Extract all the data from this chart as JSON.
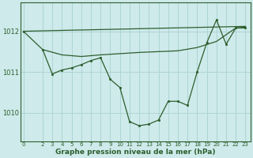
{
  "bg_color": "#ceeaea",
  "grid_color": "#afd4d4",
  "line_color": "#2d5e2d",
  "marker_color": "#2d5e2d",
  "xlabel": "Graphe pression niveau de la mer (hPa)",
  "xlabel_fontsize": 6.5,
  "xticks": [
    0,
    2,
    3,
    4,
    5,
    6,
    7,
    8,
    9,
    10,
    11,
    12,
    13,
    14,
    15,
    16,
    17,
    18,
    19,
    20,
    21,
    22,
    23
  ],
  "yticks": [
    1010,
    1011,
    1012
  ],
  "ylim": [
    1009.3,
    1012.7
  ],
  "xlim": [
    -0.3,
    23.5
  ],
  "lineA": {
    "x": [
      0,
      23
    ],
    "y": [
      1012.0,
      1012.12
    ]
  },
  "lineB": {
    "x": [
      2,
      4,
      6,
      8,
      10,
      12,
      14,
      16,
      18,
      20,
      22,
      23
    ],
    "y": [
      1011.55,
      1011.42,
      1011.38,
      1011.42,
      1011.45,
      1011.48,
      1011.5,
      1011.52,
      1011.6,
      1011.75,
      1012.08,
      1012.1
    ]
  },
  "lineC": {
    "x": [
      0,
      2,
      3,
      4,
      5,
      6,
      7,
      8,
      9,
      10,
      11,
      12,
      13,
      14,
      15,
      16,
      17,
      18,
      19,
      20,
      21,
      22,
      23
    ],
    "y": [
      1012.0,
      1011.55,
      1010.95,
      1011.05,
      1011.1,
      1011.18,
      1011.28,
      1011.35,
      1010.82,
      1010.62,
      1009.78,
      1009.68,
      1009.72,
      1009.82,
      1010.28,
      1010.28,
      1010.18,
      1011.0,
      1011.72,
      1012.28,
      1011.68,
      1012.08,
      1012.08
    ]
  }
}
